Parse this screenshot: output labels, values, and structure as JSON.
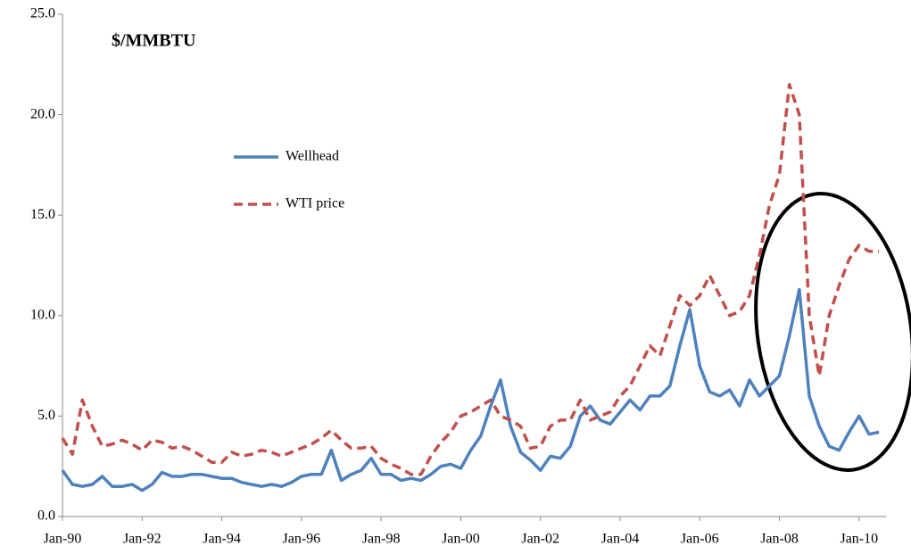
{
  "chart_data": {
    "type": "line",
    "annotation": "$/MMBTU",
    "categories": [
      "Jan-90",
      null,
      null,
      null,
      null,
      null,
      null,
      null,
      "Jan-92",
      null,
      null,
      null,
      null,
      null,
      null,
      null,
      "Jan-94",
      null,
      null,
      null,
      null,
      null,
      null,
      null,
      "Jan-96",
      null,
      null,
      null,
      null,
      null,
      null,
      null,
      "Jan-98",
      null,
      null,
      null,
      null,
      null,
      null,
      null,
      "Jan-00",
      null,
      null,
      null,
      null,
      null,
      null,
      null,
      "Jan-02",
      null,
      null,
      null,
      null,
      null,
      null,
      null,
      "Jan-04",
      null,
      null,
      null,
      null,
      null,
      null,
      null,
      "Jan-06",
      null,
      null,
      null,
      null,
      null,
      null,
      null,
      "Jan-08",
      null,
      null,
      null,
      null,
      null,
      null,
      null,
      "Jan-10",
      null,
      null
    ],
    "series": [
      {
        "name": "Wellhead",
        "color": "#4f81bd",
        "dash": false,
        "values": [
          2.3,
          1.6,
          1.5,
          1.6,
          2.0,
          1.5,
          1.5,
          1.6,
          1.3,
          1.6,
          2.2,
          2.0,
          2.0,
          2.1,
          2.1,
          2.0,
          1.9,
          1.9,
          1.7,
          1.6,
          1.5,
          1.6,
          1.5,
          1.7,
          2.0,
          2.1,
          2.1,
          3.3,
          1.8,
          2.1,
          2.3,
          2.9,
          2.1,
          2.1,
          1.8,
          1.9,
          1.8,
          2.1,
          2.5,
          2.6,
          2.4,
          3.3,
          4.0,
          5.5,
          6.8,
          4.5,
          3.2,
          2.8,
          2.3,
          3.0,
          2.9,
          3.5,
          5.0,
          5.5,
          4.8,
          4.6,
          5.2,
          5.8,
          5.3,
          6.0,
          6.0,
          6.5,
          8.5,
          10.3,
          7.5,
          6.2,
          6.0,
          6.3,
          5.5,
          6.8,
          6.0,
          6.5,
          7.0,
          9.0,
          11.3,
          6.0,
          4.5,
          3.5,
          3.3,
          4.2,
          5.0,
          4.1,
          4.2
        ]
      },
      {
        "name": "WTI price",
        "color": "#c0504d",
        "dash": true,
        "values": [
          3.9,
          3.1,
          5.8,
          4.5,
          3.5,
          3.6,
          3.8,
          3.6,
          3.3,
          3.8,
          3.7,
          3.4,
          3.5,
          3.3,
          3.0,
          2.7,
          2.7,
          3.2,
          3.0,
          3.1,
          3.3,
          3.2,
          3.0,
          3.2,
          3.4,
          3.6,
          3.9,
          4.3,
          3.8,
          3.4,
          3.4,
          3.5,
          2.9,
          2.6,
          2.4,
          2.1,
          2.1,
          3.0,
          3.7,
          4.2,
          5.0,
          5.2,
          5.5,
          5.8,
          5.0,
          4.8,
          4.5,
          3.4,
          3.5,
          4.5,
          4.8,
          4.8,
          5.8,
          4.8,
          5.0,
          5.2,
          6.0,
          6.5,
          7.5,
          8.5,
          8.0,
          9.5,
          11.0,
          10.5,
          11.0,
          12.0,
          11.0,
          10.0,
          10.2,
          11.0,
          13.0,
          15.5,
          17.0,
          21.5,
          20.0,
          10.0,
          7.0,
          10.0,
          11.5,
          12.8,
          13.5,
          13.2,
          13.2
        ]
      }
    ],
    "ylim": [
      0,
      25
    ],
    "yticks": [
      {
        "value": 0,
        "label": "0.0"
      },
      {
        "value": 5,
        "label": "5.0"
      },
      {
        "value": 10,
        "label": "10.0"
      },
      {
        "value": 15,
        "label": "15.0"
      },
      {
        "value": 20,
        "label": "20.0"
      },
      {
        "value": 25,
        "label": "25.0"
      }
    ],
    "grid": false
  }
}
